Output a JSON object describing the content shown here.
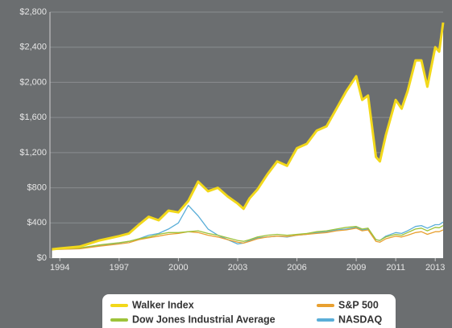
{
  "chart_data": {
    "type": "line",
    "xlim": [
      1993.5,
      2013.4
    ],
    "xticks": [
      1994,
      1997,
      2000,
      2003,
      2006,
      2009,
      2011,
      2013
    ],
    "ylim": [
      0,
      2800
    ],
    "yticks": [
      {
        "value": 0,
        "label": "$0"
      },
      {
        "value": 400,
        "label": "$400"
      },
      {
        "value": 800,
        "label": "$800"
      },
      {
        "value": 1200,
        "label": "$1,200"
      },
      {
        "value": 1600,
        "label": "$1,600"
      },
      {
        "value": 2000,
        "label": "$2,000"
      },
      {
        "value": 2400,
        "label": "$2,400"
      },
      {
        "value": 2800,
        "label": "$2,800"
      }
    ],
    "grid": true,
    "legend": "bottom",
    "x": [
      1993.6,
      1994,
      1995,
      1996,
      1997,
      1997.5,
      1998,
      1998.5,
      1999,
      1999.5,
      2000,
      2000.5,
      2001,
      2001.5,
      2002,
      2002.5,
      2003,
      2003.3,
      2003.6,
      2004,
      2004.5,
      2005,
      2005.5,
      2006,
      2006.5,
      2007,
      2007.5,
      2008,
      2008.5,
      2009,
      2009.3,
      2009.6,
      2010,
      2010.2,
      2010.5,
      2011,
      2011.3,
      2011.6,
      2012,
      2012.3,
      2012.6,
      2013,
      2013.2,
      2013.4
    ],
    "series": [
      {
        "name": "Walker Index",
        "color": "#f2d81a",
        "fill": "#ffffff",
        "values": [
          100,
          110,
          130,
          200,
          250,
          280,
          380,
          470,
          430,
          540,
          520,
          650,
          870,
          760,
          800,
          700,
          620,
          560,
          680,
          780,
          950,
          1100,
          1050,
          1250,
          1300,
          1450,
          1500,
          1700,
          1900,
          2070,
          1800,
          1850,
          1150,
          1100,
          1400,
          1800,
          1700,
          1900,
          2250,
          2250,
          1950,
          2400,
          2350,
          2680
        ]
      },
      {
        "name": "Dow Jones Industrial Average",
        "color": "#9dc33a",
        "values": [
          100,
          105,
          115,
          150,
          175,
          190,
          220,
          240,
          270,
          290,
          290,
          300,
          310,
          280,
          260,
          230,
          200,
          190,
          210,
          240,
          260,
          270,
          260,
          270,
          280,
          300,
          310,
          330,
          350,
          360,
          330,
          340,
          210,
          200,
          240,
          270,
          260,
          290,
          330,
          340,
          310,
          350,
          345,
          370
        ]
      },
      {
        "name": "S&P 500",
        "color": "#e8a030",
        "values": [
          100,
          100,
          105,
          135,
          160,
          175,
          210,
          230,
          250,
          270,
          280,
          300,
          290,
          260,
          240,
          210,
          180,
          170,
          190,
          220,
          240,
          250,
          245,
          260,
          270,
          280,
          290,
          310,
          320,
          340,
          310,
          320,
          190,
          180,
          220,
          250,
          240,
          260,
          290,
          300,
          270,
          300,
          300,
          320
        ]
      },
      {
        "name": "NASDAQ",
        "color": "#5aaed8",
        "values": [
          100,
          100,
          110,
          140,
          170,
          190,
          220,
          260,
          280,
          330,
          400,
          600,
          480,
          330,
          260,
          210,
          160,
          170,
          200,
          230,
          240,
          250,
          240,
          260,
          270,
          290,
          300,
          320,
          330,
          350,
          320,
          330,
          210,
          200,
          250,
          290,
          280,
          310,
          360,
          370,
          340,
          380,
          380,
          410
        ]
      }
    ]
  }
}
